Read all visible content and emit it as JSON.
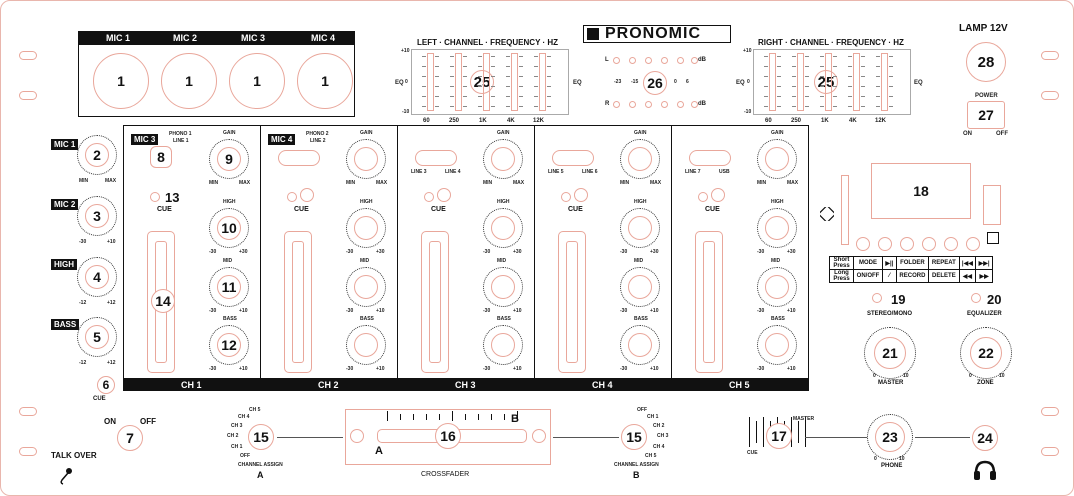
{
  "brand": "PRONOMIC",
  "colors": {
    "accent": "#e9a79b",
    "dark": "#111111"
  },
  "mic_header": [
    "MIC 1",
    "MIC 2",
    "MIC 3",
    "MIC 4"
  ],
  "mic_socket_num": "1",
  "left_strip": [
    {
      "label": "MIC 1",
      "num": "2",
      "min": "MIN",
      "max": "MAX"
    },
    {
      "label": "MIC 2",
      "num": "3",
      "min": "-30",
      "max": "+10"
    },
    {
      "label": "HIGH",
      "num": "4",
      "min": "-12",
      "max": "+12"
    },
    {
      "label": "BASS",
      "num": "5",
      "min": "-12",
      "max": "+12"
    }
  ],
  "cue_left": {
    "num": "6",
    "label": "CUE"
  },
  "talkover": {
    "num": "7",
    "on": "ON",
    "off": "OFF",
    "label": "TALK OVER"
  },
  "eq_left": {
    "title": "LEFT · CHANNEL · FREQUENCY · HZ",
    "num": "25",
    "freqs": [
      "60",
      "250",
      "1K",
      "4K",
      "12K"
    ],
    "eq": "EQ",
    "top": "+10",
    "mid": "0",
    "bot": "-10"
  },
  "eq_right": {
    "title": "RIGHT · CHANNEL · FREQUENCY · HZ",
    "num": "25",
    "freqs": [
      "60",
      "250",
      "1K",
      "4K",
      "12K"
    ],
    "eq": "EQ",
    "top": "+10",
    "mid": "0",
    "bot": "-10"
  },
  "vu": {
    "num": "26",
    "L": "L",
    "R": "R",
    "db": "dB",
    "scale": [
      "-23",
      "-15",
      "0",
      "6"
    ]
  },
  "lamp": {
    "label": "LAMP 12V",
    "num": "28"
  },
  "power": {
    "label": "POWER",
    "num": "27",
    "on": "ON",
    "off": "OFF"
  },
  "channels": [
    {
      "name": "CH 1",
      "tag": "MIC 3",
      "num_src": "8",
      "src_a": "PHONO 1",
      "src_b": "LINE 1",
      "gain_num": "9",
      "cue_num": "13",
      "high_num": "10",
      "mid_num": "11",
      "bass_num": "12",
      "fader_num": "14"
    },
    {
      "name": "CH 2",
      "tag": "MIC 4",
      "src_a": "PHONO 2",
      "src_b": "LINE 2"
    },
    {
      "name": "CH 3",
      "src_a": "LINE 3",
      "src_b": "LINE 4"
    },
    {
      "name": "CH 4",
      "src_a": "LINE 5",
      "src_b": "LINE 6"
    },
    {
      "name": "CH 5",
      "src_a": "LINE 7",
      "src_b": "USB"
    }
  ],
  "knob_labels": {
    "gain": "GAIN",
    "high": "HIGH",
    "mid": "MID",
    "bass": "BASS",
    "min": "MIN",
    "max": "MAX",
    "m30": "-30",
    "p30": "+30",
    "p10": "+10",
    "cue": "CUE"
  },
  "usb": {
    "display_num": "18",
    "stereo_num": "19",
    "stereo_label": "STEREO/MONO",
    "eq_num": "20",
    "eq_label": "EQUALIZER",
    "row_short": [
      "Short Press",
      "MODE",
      "▶||",
      "FOLDER",
      "REPEAT",
      "|◀◀",
      "▶▶|"
    ],
    "row_long": [
      "Long Press",
      "ON/OFF",
      "⁄",
      "RECORD",
      "DELETE",
      "◀◀",
      "▶▶"
    ]
  },
  "master": {
    "num": "21",
    "label": "MASTER",
    "min": "0",
    "max": "10"
  },
  "zone": {
    "num": "22",
    "label": "ZONE",
    "min": "0",
    "max": "10"
  },
  "phone": {
    "num": "23",
    "label": "PHONE",
    "min": "0",
    "max": "10"
  },
  "phone_jack": {
    "num": "24"
  },
  "cue_mix": {
    "num": "17",
    "cue": "CUE",
    "master": "MASTER"
  },
  "assign_a": {
    "num": "15",
    "label": "CHANNEL ASSIGN",
    "letter": "A",
    "opts": [
      "CH 5",
      "CH 4",
      "CH 3",
      "CH 2",
      "CH 1",
      "OFF"
    ]
  },
  "assign_b": {
    "num": "15",
    "label": "CHANNEL ASSIGN",
    "letter": "B",
    "opts": [
      "OFF",
      "CH 1",
      "CH 2",
      "CH 3",
      "CH 4",
      "CH 5"
    ]
  },
  "crossfader": {
    "num": "16",
    "label": "CROSSFADER",
    "a": "A",
    "b": "B"
  }
}
